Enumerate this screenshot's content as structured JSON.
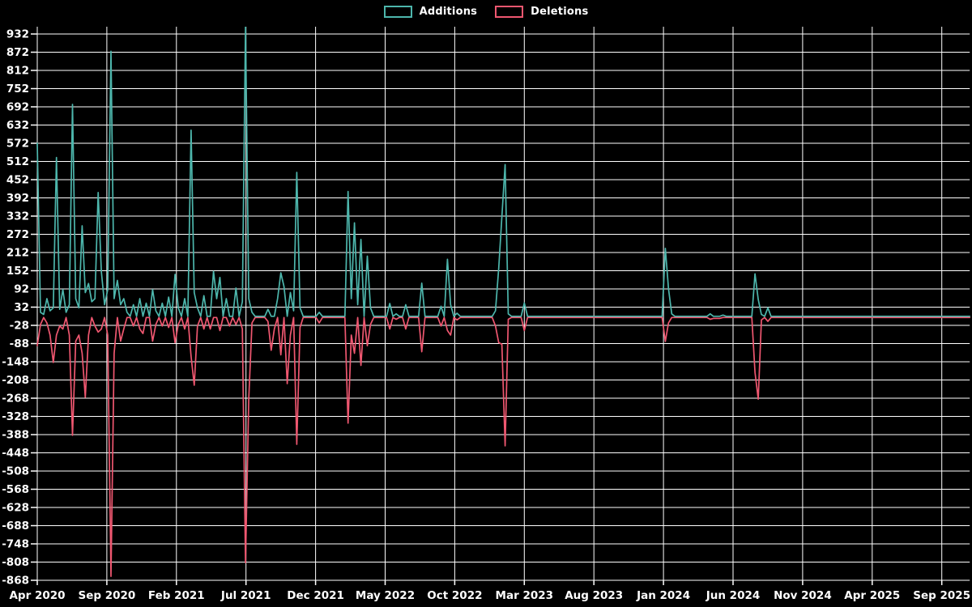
{
  "legend": {
    "additions_label": "Additions",
    "deletions_label": "Deletions"
  },
  "colors": {
    "background": "#000000",
    "grid": "#ffffff",
    "text": "#ffffff",
    "additions": "#4db6ac",
    "deletions": "#ef5770"
  },
  "chart_data": {
    "type": "line",
    "title": "",
    "xlabel": "",
    "ylabel": "",
    "legend_position": "top-center",
    "grid": true,
    "y_axis": {
      "max_tick": 932,
      "min_tick": -868,
      "step": 60,
      "ticks": [
        932,
        872,
        812,
        752,
        692,
        632,
        572,
        512,
        452,
        392,
        332,
        272,
        212,
        152,
        92,
        32,
        -28,
        -88,
        -148,
        -208,
        -268,
        -328,
        -388,
        -448,
        -508,
        -568,
        -628,
        -688,
        -748,
        -808,
        -868
      ]
    },
    "x_axis": {
      "tick_labels": [
        "Apr 2020",
        "Sep 2020",
        "Feb 2021",
        "Jul 2021",
        "Dec 2021",
        "May 2022",
        "Oct 2022",
        "Mar 2023",
        "Aug 2023",
        "Jan 2024",
        "Jun 2024",
        "Nov 2024",
        "Apr 2025",
        "Sep 2025"
      ],
      "weeks_per_tick": 21.714,
      "weeks_total": 292
    },
    "series": [
      {
        "name": "Additions",
        "color": "#4db6ac",
        "baseline": 2,
        "points": {
          "0": 572,
          "1": 15,
          "2": 8,
          "3": 60,
          "4": 20,
          "5": 30,
          "6": 525,
          "7": 25,
          "8": 90,
          "9": 15,
          "10": 40,
          "11": 700,
          "12": 60,
          "13": 30,
          "14": 300,
          "15": 80,
          "16": 110,
          "17": 50,
          "18": 60,
          "19": 410,
          "20": 150,
          "21": 40,
          "22": 90,
          "23": 875,
          "24": 60,
          "25": 120,
          "26": 40,
          "27": 60,
          "28": 15,
          "30": 40,
          "32": 60,
          "34": 45,
          "36": 90,
          "37": 20,
          "39": 45,
          "41": 65,
          "43": 140,
          "44": 30,
          "46": 60,
          "48": 615,
          "49": 80,
          "50": 30,
          "52": 70,
          "55": 150,
          "56": 60,
          "57": 130,
          "59": 60,
          "62": 95,
          "64": 50,
          "65": 960,
          "66": 60,
          "67": 15,
          "72": 25,
          "75": 60,
          "76": 145,
          "77": 100,
          "79": 80,
          "80": 20,
          "81": 476,
          "82": 30,
          "88": 15,
          "97": 413,
          "98": 60,
          "99": 310,
          "100": 40,
          "101": 255,
          "103": 200,
          "104": 30,
          "110": 44,
          "112": 10,
          "115": 40,
          "120": 111,
          "126": 35,
          "128": 190,
          "129": 40,
          "131": 12,
          "143": 20,
          "144": 160,
          "145": 330,
          "146": 502,
          "147": 10,
          "152": 46,
          "196": 226,
          "197": 93,
          "198": 10,
          "210": 10,
          "214": 6,
          "224": 142,
          "225": 57,
          "226": 8,
          "228": 30
        }
      },
      {
        "name": "Deletions",
        "color": "#ef5770",
        "baseline": -2,
        "points": {
          "0": -95,
          "1": -25,
          "3": -20,
          "4": -60,
          "5": -150,
          "6": -60,
          "7": -30,
          "8": -40,
          "10": -60,
          "11": -390,
          "12": -80,
          "13": -60,
          "14": -120,
          "15": -265,
          "16": -60,
          "18": -30,
          "19": -50,
          "20": -40,
          "22": -60,
          "23": -855,
          "24": -120,
          "26": -80,
          "27": -40,
          "30": -30,
          "32": -40,
          "33": -55,
          "36": -80,
          "37": -25,
          "39": -30,
          "41": -35,
          "43": -85,
          "44": -25,
          "46": -40,
          "48": -130,
          "49": -225,
          "50": -30,
          "52": -40,
          "54": -40,
          "57": -45,
          "60": -30,
          "62": -25,
          "64": -40,
          "65": -810,
          "66": -270,
          "67": -20,
          "72": -15,
          "73": -110,
          "74": -40,
          "76": -125,
          "78": -220,
          "79": -60,
          "81": -420,
          "82": -35,
          "88": -20,
          "97": -350,
          "98": -60,
          "99": -120,
          "101": -160,
          "103": -95,
          "104": -25,
          "110": -40,
          "112": -8,
          "115": -40,
          "120": -115,
          "126": -30,
          "128": -45,
          "129": -60,
          "131": -10,
          "143": -30,
          "144": -85,
          "145": -90,
          "146": -425,
          "147": -8,
          "152": -45,
          "196": -81,
          "197": -20,
          "210": -8,
          "211": -5,
          "212": -5,
          "213": -5,
          "224": -183,
          "225": -271,
          "226": -10,
          "228": -15
        }
      }
    ]
  }
}
